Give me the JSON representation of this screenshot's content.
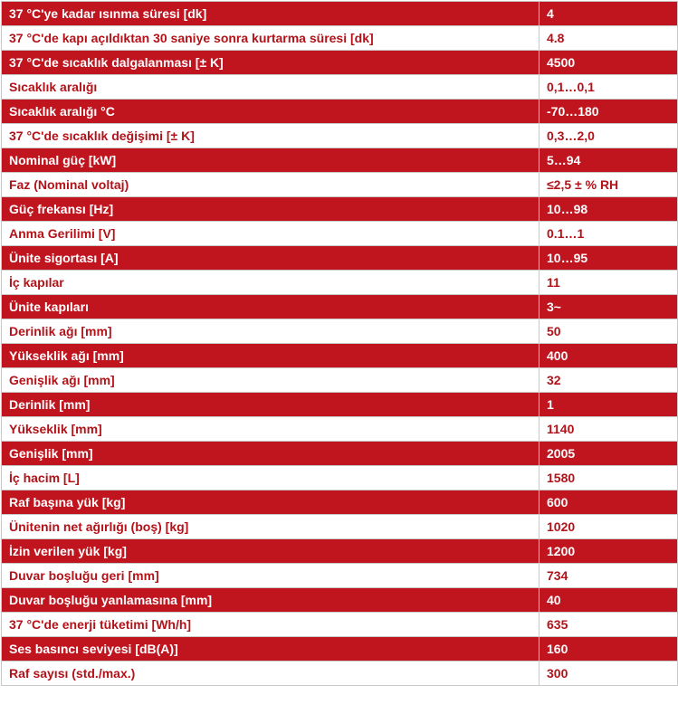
{
  "spec_table": {
    "rows": [
      {
        "label": "37 °C'ye kadar ısınma süresi [dk]",
        "value": "4"
      },
      {
        "label": "37 °C'de kapı açıldıktan 30 saniye sonra kurtarma süresi [dk]",
        "value": "4.8"
      },
      {
        "label": "37 °C'de sıcaklık dalgalanması [± K]",
        "value": "4500"
      },
      {
        "label": "Sıcaklık aralığı",
        "value": "0,1…0,1"
      },
      {
        "label": "Sıcaklık aralığı °C",
        "value": "-70…180"
      },
      {
        "label": "37 °C'de sıcaklık değişimi [± K]",
        "value": "0,3…2,0"
      },
      {
        "label": "Nominal güç [kW]",
        "value": "5…94"
      },
      {
        "label": "Faz (Nominal voltaj)",
        "value": "≤2,5 ± % RH"
      },
      {
        "label": "Güç frekansı [Hz]",
        "value": "10…98"
      },
      {
        "label": "Anma Gerilimi [V]",
        "value": "0.1…1"
      },
      {
        "label": "Ünite sigortası [A]",
        "value": "10…95"
      },
      {
        "label": "İç kapılar",
        "value": "11"
      },
      {
        "label": "Ünite kapıları",
        "value": "3~"
      },
      {
        "label": "Derinlik ağı [mm]",
        "value": "50"
      },
      {
        "label": "Yükseklik ağı [mm]",
        "value": "400"
      },
      {
        "label": "Genişlik ağı [mm]",
        "value": "32"
      },
      {
        "label": "Derinlik [mm]",
        "value": "1"
      },
      {
        "label": "Yükseklik [mm]",
        "value": "1140"
      },
      {
        "label": "Genişlik [mm]",
        "value": "2005"
      },
      {
        "label": "İç hacim [L]",
        "value": "1580"
      },
      {
        "label": "Raf başına yük [kg]",
        "value": "600"
      },
      {
        "label": "Ünitenin net ağırlığı (boş) [kg]",
        "value": "1020"
      },
      {
        "label": "İzin verilen yük [kg]",
        "value": "1200"
      },
      {
        "label": "Duvar boşluğu geri [mm]",
        "value": "734"
      },
      {
        "label": "Duvar boşluğu yanlamasına [mm]",
        "value": "40"
      },
      {
        "label": "37 °C'de enerji tüketimi [Wh/h]",
        "value": "635"
      },
      {
        "label": "Ses basıncı seviyesi [dB(A)]",
        "value": "160"
      },
      {
        "label": "Raf sayısı (std./max.)",
        "value": "300"
      }
    ],
    "colors": {
      "dark_row": "#c0141e",
      "light_row_text": "#b31219",
      "border": "#c9c9c9"
    }
  }
}
